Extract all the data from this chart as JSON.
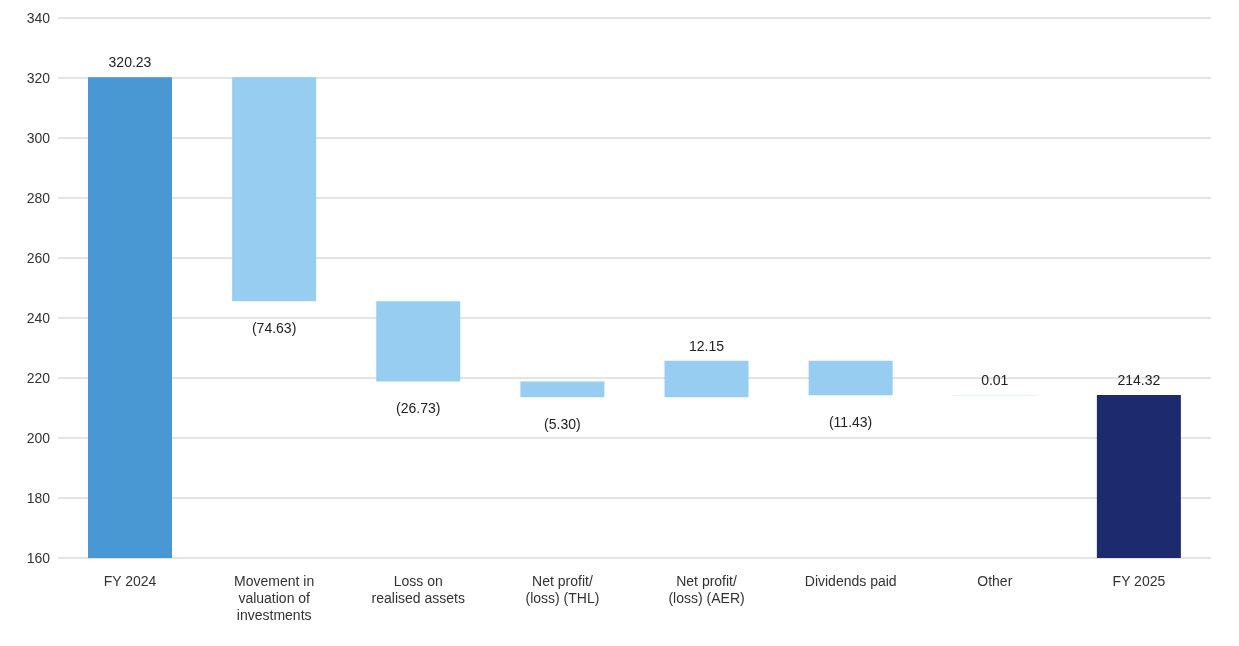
{
  "chart_data": {
    "type": "bar",
    "categories": [
      "FY 2024",
      "Movement in valuation of investments",
      "Loss on realised assets",
      "Net profit/ (loss) (THL)",
      "Net profit/ (loss) (AER)",
      "Dividends paid",
      "Other",
      "FY 2025"
    ],
    "values": [
      320.23,
      -74.63,
      -26.73,
      -5.3,
      12.15,
      -11.43,
      0.01,
      214.32
    ],
    "base": [
      0,
      320.23,
      245.6,
      218.87,
      213.57,
      225.72,
      214.29,
      0
    ],
    "colors": [
      "#4a98d3",
      "#96cdf0",
      "#96cdf0",
      "#96cdf0",
      "#96cdf0",
      "#96cdf0",
      "#96cdf0",
      "#1e2a6e"
    ],
    "value_labels": [
      "320.23",
      "(74.63)",
      "(26.73)",
      "(5.30)",
      "12.15",
      "(11.43)",
      "0.01",
      "214.32"
    ],
    "ylim": [
      160,
      340
    ],
    "yticks": [
      160,
      180,
      200,
      220,
      240,
      260,
      280,
      300,
      320,
      340
    ],
    "grid": "y",
    "legend": false
  }
}
